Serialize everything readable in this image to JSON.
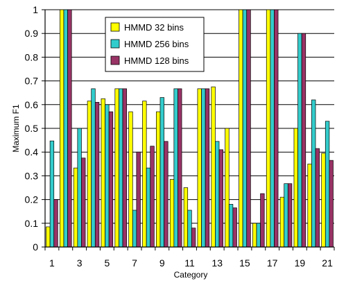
{
  "chart_data": {
    "type": "bar",
    "title": "",
    "xlabel": "Category",
    "ylabel": "Maximum F1",
    "ylim": [
      0,
      1
    ],
    "yticks": [
      "0",
      "0.1",
      "0.2",
      "0.3",
      "0.4",
      "0.5",
      "0.6",
      "0.7",
      "0.8",
      "0.9",
      "1"
    ],
    "categories": [
      "1",
      "2",
      "3",
      "4",
      "5",
      "6",
      "7",
      "8",
      "9",
      "10",
      "11",
      "12",
      "13",
      "14",
      "15",
      "16",
      "17",
      "18",
      "19",
      "20",
      "21"
    ],
    "xtick_labels": [
      "1",
      "",
      "3",
      "",
      "5",
      "",
      "7",
      "",
      "9",
      "",
      "11",
      "",
      "13",
      "",
      "15",
      "",
      "17",
      "",
      "19",
      "",
      "21"
    ],
    "grid": true,
    "legend_position": "top-center",
    "series": [
      {
        "name": "HMMD 32 bins",
        "color": "#FFFF00",
        "values": [
          0.085,
          1.0,
          0.333,
          0.615,
          0.625,
          0.667,
          0.57,
          0.615,
          0.57,
          0.285,
          0.25,
          0.667,
          0.675,
          0.5,
          1.0,
          0.1,
          1.0,
          0.21,
          0.5,
          0.35,
          0.395
        ]
      },
      {
        "name": "HMMD 256 bins",
        "color": "#33CCCC",
        "values": [
          0.447,
          1.0,
          0.5,
          0.667,
          0.6,
          0.667,
          0.155,
          0.333,
          0.63,
          0.667,
          0.155,
          0.667,
          0.445,
          0.18,
          1.0,
          0.1,
          1.0,
          0.267,
          0.9,
          0.62,
          0.53
        ]
      },
      {
        "name": "HMMD 128 bins",
        "color": "#993366",
        "values": [
          0.2,
          1.0,
          0.375,
          0.61,
          0.57,
          0.667,
          0.4,
          0.425,
          0.445,
          0.667,
          0.08,
          0.667,
          0.41,
          0.165,
          1.0,
          0.225,
          1.0,
          0.267,
          0.9,
          0.415,
          0.365
        ]
      }
    ]
  }
}
